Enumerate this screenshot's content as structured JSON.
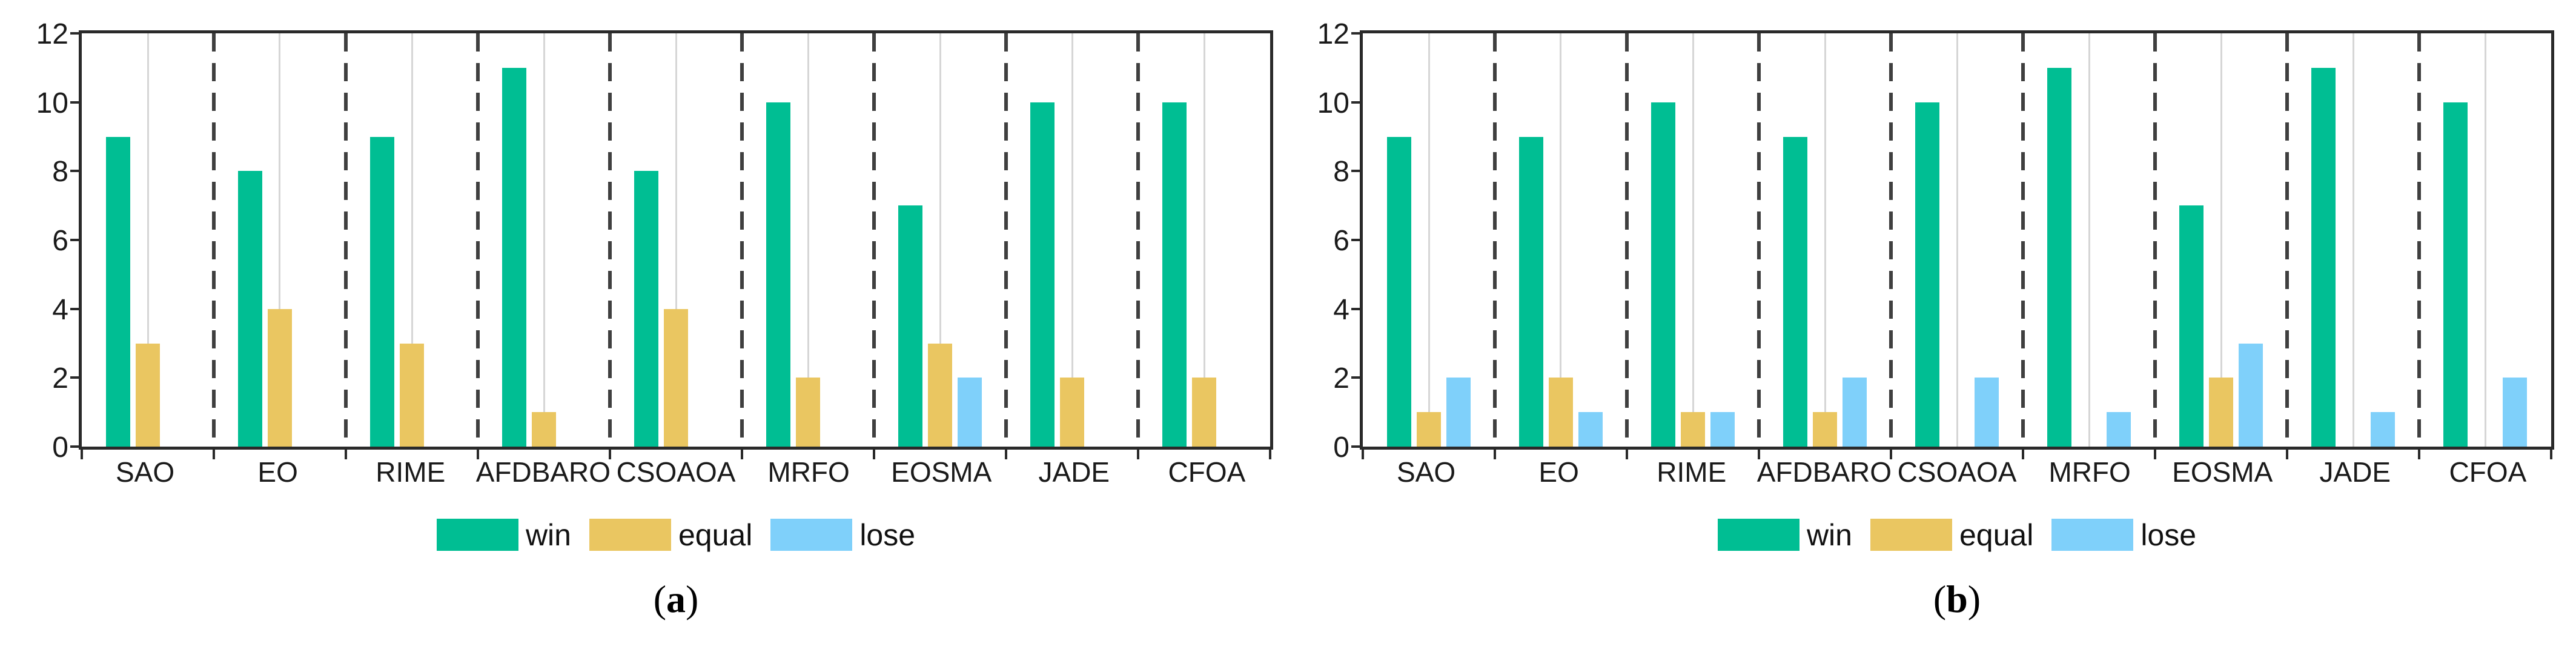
{
  "figure": {
    "background_color": "#ffffff",
    "axis_color": "#2a2a2a",
    "grid_line_color": "#d6d6d6",
    "separator_line_color": "#3f3f3f",
    "text_color": "#1a1a1a"
  },
  "legend": {
    "items": [
      {
        "name": "win",
        "label": "win",
        "color": "#00be93"
      },
      {
        "name": "equal",
        "label": "equal",
        "color": "#eac661"
      },
      {
        "name": "lose",
        "label": "lose",
        "color": "#7fd0fa"
      }
    ],
    "position": "below-plot, horizontal"
  },
  "chart_data": [
    {
      "id": "a",
      "type": "bar",
      "caption": "(a)",
      "categories": [
        "SAO",
        "EO",
        "RIME",
        "AFDBARO",
        "CSOAOA",
        "MRFO",
        "EOSMA",
        "JADE",
        "CFOA"
      ],
      "series": [
        {
          "name": "win",
          "color": "#00be93",
          "values": [
            9,
            8,
            9,
            11,
            8,
            10,
            7,
            10,
            10
          ]
        },
        {
          "name": "equal",
          "color": "#eac661",
          "values": [
            3,
            4,
            3,
            1,
            4,
            2,
            3,
            2,
            2
          ]
        },
        {
          "name": "lose",
          "color": "#7fd0fa",
          "values": [
            0,
            0,
            0,
            0,
            0,
            0,
            2,
            0,
            0
          ]
        }
      ],
      "xlabel": "",
      "ylabel": "",
      "ylim": [
        0,
        12
      ],
      "yticks": [
        0,
        2,
        4,
        6,
        8,
        10,
        12
      ],
      "grid": "vertical light gridline at each category center; dashed vertical separators between categories; no horizontal gridlines",
      "legend_entries": [
        "win",
        "equal",
        "lose"
      ],
      "legend_position": "south outside"
    },
    {
      "id": "b",
      "type": "bar",
      "caption": "(b)",
      "categories": [
        "SAO",
        "EO",
        "RIME",
        "AFDBARO",
        "CSOAOA",
        "MRFO",
        "EOSMA",
        "JADE",
        "CFOA"
      ],
      "series": [
        {
          "name": "win",
          "color": "#00be93",
          "values": [
            9,
            9,
            10,
            9,
            10,
            11,
            7,
            11,
            10
          ]
        },
        {
          "name": "equal",
          "color": "#eac661",
          "values": [
            1,
            2,
            1,
            1,
            0,
            0,
            2,
            0,
            0
          ]
        },
        {
          "name": "lose",
          "color": "#7fd0fa",
          "values": [
            2,
            1,
            1,
            2,
            2,
            1,
            3,
            1,
            2
          ]
        }
      ],
      "xlabel": "",
      "ylabel": "",
      "ylim": [
        0,
        12
      ],
      "yticks": [
        0,
        2,
        4,
        6,
        8,
        10,
        12
      ],
      "grid": "vertical light gridline at each category center; dashed vertical separators between categories; no horizontal gridlines",
      "legend_entries": [
        "win",
        "equal",
        "lose"
      ],
      "legend_position": "south outside"
    }
  ]
}
